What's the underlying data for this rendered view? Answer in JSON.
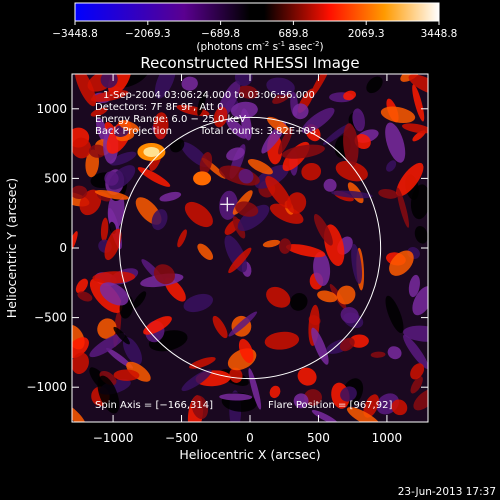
{
  "colorbar": {
    "ticks": [
      "-3448.8",
      "-2069.3",
      "-689.8",
      "689.8",
      "2069.3",
      "3448.8"
    ],
    "min": -3448.8,
    "max": 3448.8,
    "units_prefix": "(photons cm",
    "units_sup1": "-2",
    "units_mid": " s",
    "units_sup2": "-1",
    "units_mid2": " asec",
    "units_sup3": "-2",
    "units_suffix": ")",
    "colors": [
      "#0000ff",
      "#4a0070",
      "#000000",
      "#ff0000",
      "#ff9900",
      "#ffffff"
    ]
  },
  "chart_data": {
    "type": "heatmap",
    "title": "Reconstructed RHESSI Image",
    "xlabel": "Heliocentric X (arcsec)",
    "ylabel": "Heliocentric Y (arcsec)",
    "xlim": [
      -1300,
      1300
    ],
    "ylim": [
      -1250,
      1250
    ],
    "xticks": [
      -1000,
      -500,
      0,
      500,
      1000
    ],
    "yticks": [
      -1000,
      -500,
      0,
      500,
      1000
    ],
    "xtick_labels": [
      "−1000",
      "−500",
      "0",
      "500",
      "1000"
    ],
    "ytick_labels": [
      "−1000",
      "−500",
      "0",
      "500",
      "1000"
    ],
    "solar_disk": {
      "center": [
        0,
        0
      ],
      "radius": 954
    },
    "marker": {
      "x": -166,
      "y": 314
    },
    "bright_source": {
      "x": -720,
      "y": 690
    },
    "annotations": {
      "time": "1-Sep-2004 03:06:24.000 to 03:06:56.000",
      "detectors": "Detectors: 7F 8F 9F, Att 0",
      "energy": "Energy Range: 6.0 − 25.0 keV",
      "method": "Back Projection",
      "counts": "Total counts: 3.82E+03",
      "spin_axis": "Spin Axis = [−166,314]",
      "flare_position": "Flare Position = [967,92]"
    }
  },
  "footer": {
    "date": "23-Jun-2013 17:37"
  }
}
